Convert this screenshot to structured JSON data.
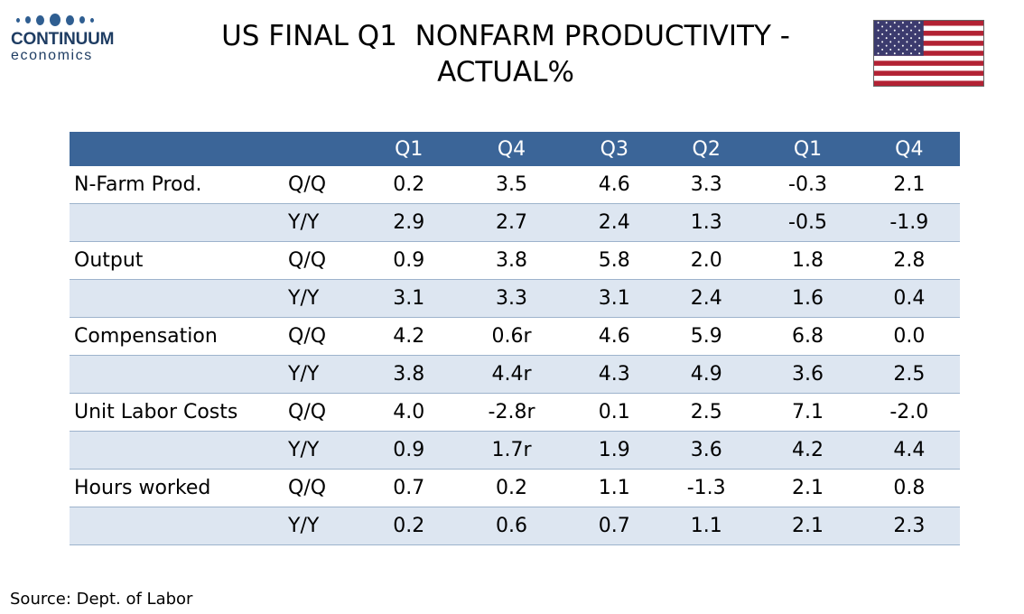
{
  "logo": {
    "name": "CONTINUUM",
    "sub": "economics"
  },
  "title": {
    "line1": "US FINAL Q1  NONFARM PRODUCTIVITY -",
    "line2": "ACTUAL%"
  },
  "colors": {
    "header_bg": "#3b6598",
    "band_bg": "#dde6f1",
    "logo": "#1f3d63",
    "flag_red": "#b22234",
    "flag_blue": "#3c3b6e"
  },
  "table": {
    "columns": [
      "Q1",
      "Q4",
      "Q3",
      "Q2",
      "Q1",
      "Q4"
    ],
    "rows": [
      {
        "label": "N-Farm Prod.",
        "metric": "Q/Q",
        "values": [
          "0.2",
          "3.5",
          "4.6",
          "3.3",
          "-0.3",
          "2.1"
        ]
      },
      {
        "label": "",
        "metric": "Y/Y",
        "values": [
          "2.9",
          "2.7",
          "2.4",
          "1.3",
          "-0.5",
          "-1.9"
        ]
      },
      {
        "label": "Output",
        "metric": "Q/Q",
        "values": [
          "0.9",
          "3.8",
          "5.8",
          "2.0",
          "1.8",
          "2.8"
        ]
      },
      {
        "label": "",
        "metric": "Y/Y",
        "values": [
          "3.1",
          "3.3",
          "3.1",
          "2.4",
          "1.6",
          "0.4"
        ]
      },
      {
        "label": "Compensation",
        "metric": "Q/Q",
        "values": [
          "4.2",
          "0.6r",
          "4.6",
          "5.9",
          "6.8",
          "0.0"
        ]
      },
      {
        "label": "",
        "metric": "Y/Y",
        "values": [
          "3.8",
          "4.4r",
          "4.3",
          "4.9",
          "3.6",
          "2.5"
        ]
      },
      {
        "label": "Unit Labor Costs",
        "metric": "Q/Q",
        "values": [
          "4.0",
          "-2.8r",
          "0.1",
          "2.5",
          "7.1",
          "-2.0"
        ]
      },
      {
        "label": "",
        "metric": "Y/Y",
        "values": [
          "0.9",
          "1.7r",
          "1.9",
          "3.6",
          "4.2",
          "4.4"
        ]
      },
      {
        "label": "Hours worked",
        "metric": "Q/Q",
        "values": [
          "0.7",
          "0.2",
          "1.1",
          "-1.3",
          "2.1",
          "0.8"
        ]
      },
      {
        "label": "",
        "metric": "Y/Y",
        "values": [
          "0.2",
          "0.6",
          "0.7",
          "1.1",
          "2.1",
          "2.3"
        ]
      }
    ]
  },
  "source": "Source: Dept. of Labor"
}
